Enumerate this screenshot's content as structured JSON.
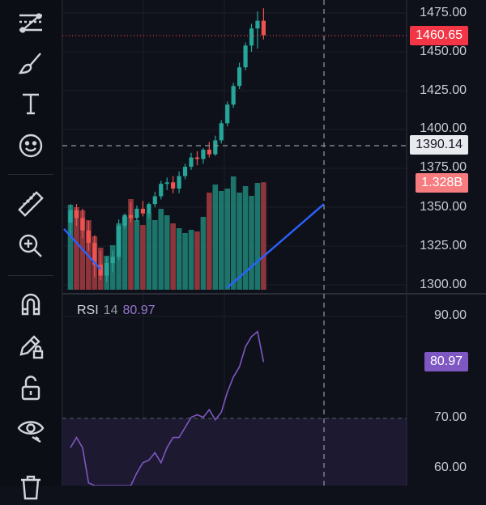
{
  "toolbar": {
    "tools": [
      {
        "name": "trend-line-tool",
        "icon": "trend-line-icon"
      },
      {
        "name": "brush-tool",
        "icon": "brush-icon"
      },
      {
        "name": "text-tool",
        "icon": "text-icon"
      },
      {
        "name": "emoji-tool",
        "icon": "smiley-icon"
      },
      {
        "name": "measure-tool",
        "icon": "ruler-icon"
      },
      {
        "name": "zoom-tool",
        "icon": "zoom-in-icon"
      },
      {
        "name": "magnet-tool",
        "icon": "magnet-icon"
      },
      {
        "name": "lock-drawings-tool",
        "icon": "pencil-lock-icon"
      },
      {
        "name": "unlock-tool",
        "icon": "unlock-icon"
      },
      {
        "name": "visibility-tool",
        "icon": "eye-icon"
      },
      {
        "name": "delete-tool",
        "icon": "trash-icon"
      }
    ]
  },
  "price_axis": {
    "labels": [
      "1475.00",
      "1450.00",
      "1425.00",
      "1400.00",
      "1375.00",
      "1350.00",
      "1325.00",
      "1300.00"
    ],
    "last_price": "1460.65",
    "crosshair_price": "1390.14",
    "volume_tag": "1.328B"
  },
  "rsi": {
    "name": "RSI",
    "length": "14",
    "value": "80.97",
    "axis_labels": [
      "90.00",
      "70.00",
      "60.00"
    ]
  },
  "colors": {
    "up": "#26a69a",
    "down": "#ef5350",
    "rsi_line": "#7e57c2",
    "tag_red": "#f23645",
    "tag_purple": "#7e57c2",
    "drawing_blue": "#2962ff"
  },
  "chart_data": {
    "type": "candlestick",
    "price_range": [
      1295,
      1480
    ],
    "candles": [
      {
        "o": 1340,
        "h": 1352,
        "l": 1332,
        "c": 1348
      },
      {
        "o": 1348,
        "h": 1352,
        "l": 1338,
        "c": 1343
      },
      {
        "o": 1343,
        "h": 1349,
        "l": 1330,
        "c": 1335
      },
      {
        "o": 1335,
        "h": 1341,
        "l": 1322,
        "c": 1327
      },
      {
        "o": 1327,
        "h": 1332,
        "l": 1305,
        "c": 1313
      },
      {
        "o": 1313,
        "h": 1322,
        "l": 1303,
        "c": 1306
      },
      {
        "o": 1306,
        "h": 1318,
        "l": 1302,
        "c": 1314
      },
      {
        "o": 1314,
        "h": 1322,
        "l": 1308,
        "c": 1318
      },
      {
        "o": 1318,
        "h": 1342,
        "l": 1316,
        "c": 1338
      },
      {
        "o": 1338,
        "h": 1346,
        "l": 1336,
        "c": 1345
      },
      {
        "o": 1345,
        "h": 1353,
        "l": 1340,
        "c": 1343
      },
      {
        "o": 1343,
        "h": 1351,
        "l": 1341,
        "c": 1349
      },
      {
        "o": 1349,
        "h": 1354,
        "l": 1344,
        "c": 1346
      },
      {
        "o": 1346,
        "h": 1353,
        "l": 1343,
        "c": 1352
      },
      {
        "o": 1352,
        "h": 1360,
        "l": 1350,
        "c": 1357
      },
      {
        "o": 1357,
        "h": 1367,
        "l": 1355,
        "c": 1365
      },
      {
        "o": 1365,
        "h": 1369,
        "l": 1361,
        "c": 1366
      },
      {
        "o": 1366,
        "h": 1370,
        "l": 1359,
        "c": 1362
      },
      {
        "o": 1362,
        "h": 1373,
        "l": 1359,
        "c": 1370
      },
      {
        "o": 1370,
        "h": 1378,
        "l": 1368,
        "c": 1376
      },
      {
        "o": 1376,
        "h": 1385,
        "l": 1374,
        "c": 1382
      },
      {
        "o": 1382,
        "h": 1386,
        "l": 1377,
        "c": 1381
      },
      {
        "o": 1381,
        "h": 1388,
        "l": 1378,
        "c": 1387
      },
      {
        "o": 1387,
        "h": 1392,
        "l": 1382,
        "c": 1384
      },
      {
        "o": 1384,
        "h": 1396,
        "l": 1383,
        "c": 1393
      },
      {
        "o": 1393,
        "h": 1406,
        "l": 1391,
        "c": 1404
      },
      {
        "o": 1404,
        "h": 1418,
        "l": 1402,
        "c": 1416
      },
      {
        "o": 1416,
        "h": 1430,
        "l": 1414,
        "c": 1428
      },
      {
        "o": 1428,
        "h": 1443,
        "l": 1426,
        "c": 1440
      },
      {
        "o": 1440,
        "h": 1456,
        "l": 1438,
        "c": 1454
      },
      {
        "o": 1454,
        "h": 1468,
        "l": 1450,
        "c": 1465
      },
      {
        "o": 1465,
        "h": 1476,
        "l": 1452,
        "c": 1470
      },
      {
        "o": 1470,
        "h": 1478,
        "l": 1458,
        "c": 1460.65
      }
    ],
    "volume_range": [
      0,
      1.6
    ],
    "volumes": [
      1.05,
      1.02,
      0.98,
      0.86,
      0.66,
      0.52,
      0.42,
      0.55,
      0.82,
      0.9,
      1.12,
      0.86,
      0.8,
      0.95,
      0.86,
      1.0,
      0.92,
      0.82,
      0.76,
      0.7,
      0.74,
      0.72,
      0.9,
      1.2,
      1.3,
      1.22,
      1.25,
      1.4,
      1.2,
      1.28,
      1.16,
      1.32,
      1.328
    ],
    "rsi_range": [
      55,
      95
    ],
    "rsi": [
      64,
      66,
      64,
      57,
      49,
      46,
      43,
      45,
      50,
      52,
      54,
      59,
      61,
      61.5,
      63,
      61,
      64,
      66,
      66,
      68,
      70,
      70.5,
      70,
      71.5,
      69.5,
      71,
      75,
      78,
      80,
      84,
      86,
      87,
      80.97
    ],
    "trend_lines": [
      {
        "x1": 0,
        "y1": 1336,
        "x2": 5,
        "y2": 1310
      },
      {
        "x1": 27,
        "y1": 1298,
        "x2": 42,
        "y2": 1352
      }
    ]
  }
}
